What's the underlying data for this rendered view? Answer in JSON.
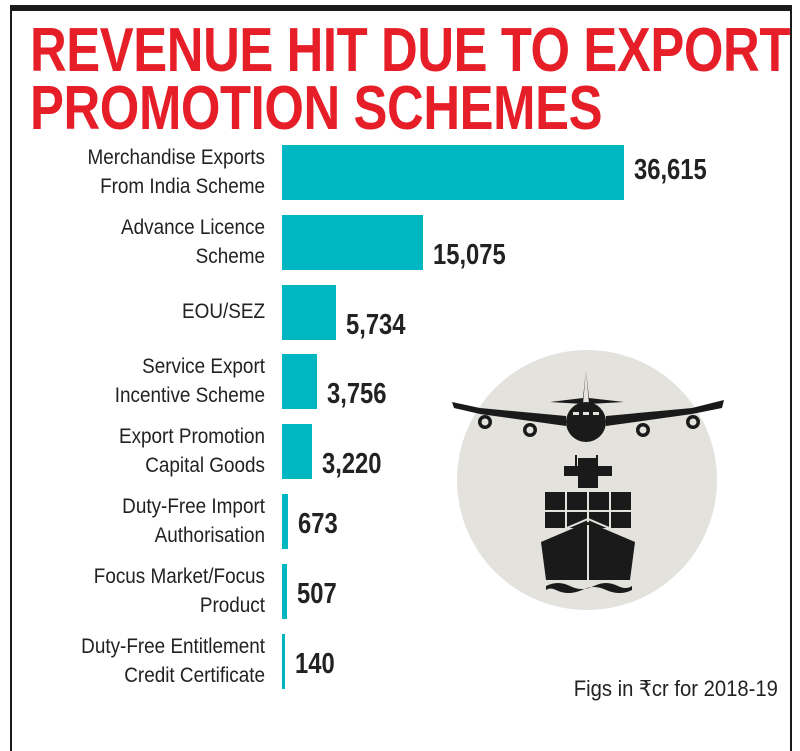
{
  "chart_data": {
    "type": "bar",
    "orientation": "horizontal",
    "title": "REVENUE HIT DUE TO EXPORT PROMOTION SCHEMES",
    "title_lines": [
      "REVENUE HIT DUE TO EXPORT",
      "PROMOTION SCHEMES"
    ],
    "categories": [
      [
        "Merchandise Exports",
        "From India Scheme"
      ],
      [
        "Advance Licence",
        "Scheme"
      ],
      [
        "EOU/SEZ"
      ],
      [
        "Service Export",
        "Incentive Scheme"
      ],
      [
        "Export Promotion",
        "Capital Goods"
      ],
      [
        "Duty-Free Import",
        "Authorisation"
      ],
      [
        "Focus Market/Focus",
        "Product"
      ],
      [
        "Duty-Free Entitlement",
        "Credit Certificate"
      ]
    ],
    "values": [
      36615,
      15075,
      5734,
      3756,
      3220,
      673,
      507,
      140
    ],
    "value_labels": [
      "36,615",
      "15,075",
      "5,734",
      "3,756",
      "3,220",
      "673",
      "507",
      "140"
    ],
    "note": "Figs in ₹cr for 2018-19",
    "unit": "₹ crore",
    "xlim": [
      0,
      36615
    ],
    "grid": false,
    "colors": {
      "bar": "#00b6c0",
      "title": "#e61e28",
      "circle": "#e3e2dd",
      "icon": "#1a1a1a"
    }
  },
  "icon": "airplane-and-container-ship-icon"
}
